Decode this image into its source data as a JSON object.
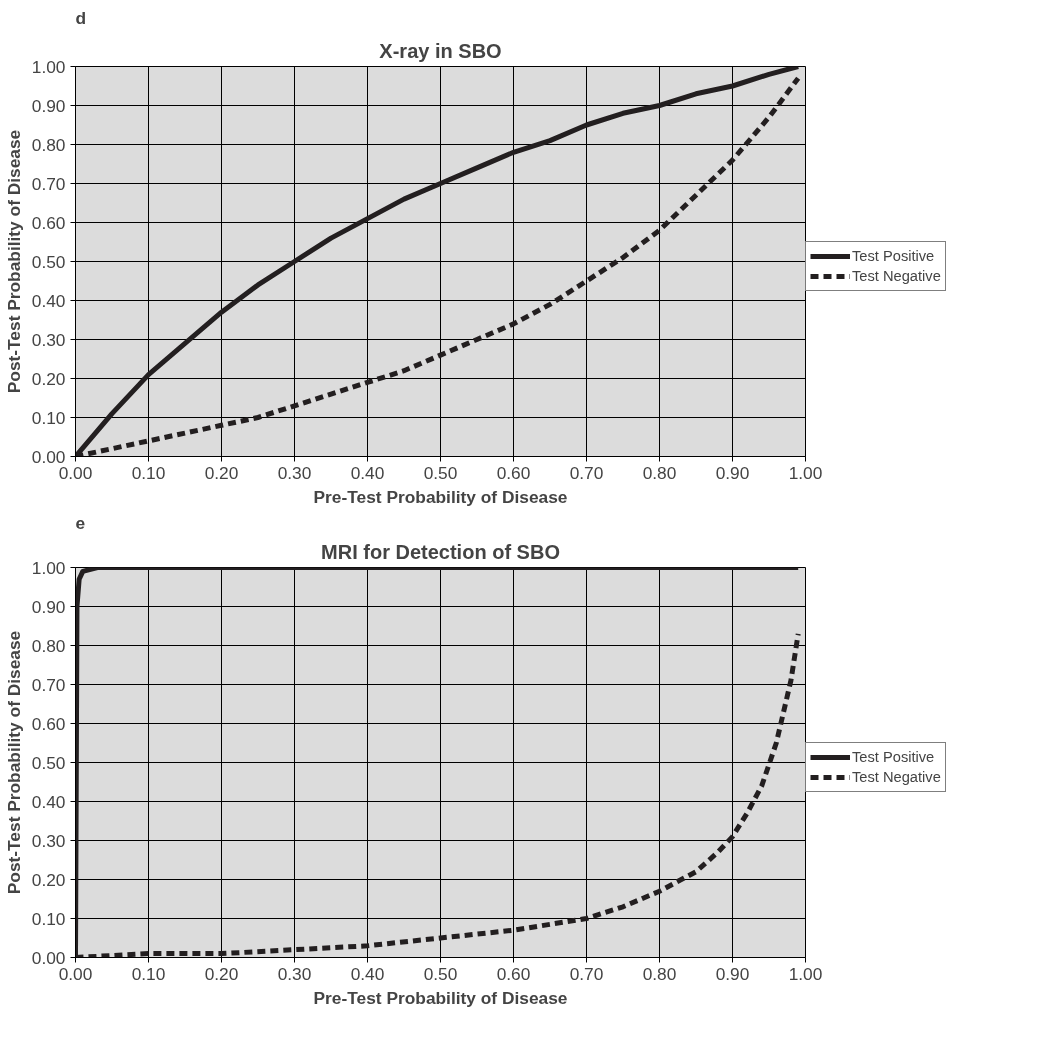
{
  "chart_data": [
    {
      "type": "line",
      "title": "X-ray in SBO",
      "xlabel": "Pre-Test Probability of Disease",
      "ylabel": "Post-Test Probability of Disease",
      "annotations": [
        "d"
      ],
      "x": [
        0,
        0.05,
        0.1,
        0.15,
        0.2,
        0.25,
        0.3,
        0.35,
        0.4,
        0.45,
        0.5,
        0.55,
        0.6,
        0.65,
        0.7,
        0.75,
        0.8,
        0.85,
        0.9,
        0.95,
        0.99
      ],
      "series": [
        {
          "name": "Test Positive",
          "color": "#231f20",
          "line_style": "solid",
          "values": [
            0,
            0.11,
            0.21,
            0.29,
            0.37,
            0.44,
            0.5,
            0.56,
            0.61,
            0.66,
            0.7,
            0.74,
            0.78,
            0.81,
            0.85,
            0.88,
            0.9,
            0.93,
            0.95,
            0.98,
            1.0
          ]
        },
        {
          "name": "Test Negative",
          "color": "#231f20",
          "line_style": "dashed",
          "values": [
            0,
            0.02,
            0.04,
            0.06,
            0.08,
            0.1,
            0.13,
            0.16,
            0.19,
            0.22,
            0.26,
            0.3,
            0.34,
            0.39,
            0.45,
            0.51,
            0.58,
            0.67,
            0.76,
            0.87,
            0.97
          ]
        }
      ],
      "xlim": [
        0,
        1
      ],
      "ylim": [
        0,
        1
      ],
      "xticks": [
        {
          "value": 0,
          "label": "0.00"
        },
        {
          "value": 0.1,
          "label": "0.10"
        },
        {
          "value": 0.2,
          "label": "0.20"
        },
        {
          "value": 0.3,
          "label": "0.30"
        },
        {
          "value": 0.4,
          "label": "0.40"
        },
        {
          "value": 0.5,
          "label": "0.50"
        },
        {
          "value": 0.6,
          "label": "0.60"
        },
        {
          "value": 0.7,
          "label": "0.70"
        },
        {
          "value": 0.8,
          "label": "0.80"
        },
        {
          "value": 0.9,
          "label": "0.90"
        },
        {
          "value": 1,
          "label": "1.00"
        }
      ],
      "yticks": [
        {
          "value": 0,
          "label": "0.00"
        },
        {
          "value": 0.1,
          "label": "0.10"
        },
        {
          "value": 0.2,
          "label": "0.20"
        },
        {
          "value": 0.3,
          "label": "0.30"
        },
        {
          "value": 0.4,
          "label": "0.40"
        },
        {
          "value": 0.5,
          "label": "0.50"
        },
        {
          "value": 0.6,
          "label": "0.60"
        },
        {
          "value": 0.7,
          "label": "0.70"
        },
        {
          "value": 0.8,
          "label": "0.80"
        },
        {
          "value": 0.9,
          "label": "0.90"
        },
        {
          "value": 1,
          "label": "1.00"
        }
      ],
      "grid": true,
      "legend": "right",
      "marker": "none"
    },
    {
      "type": "line",
      "title": "MRI for Detection of SBO",
      "xlabel": "Pre-Test Probability of Disease",
      "ylabel": "Post-Test Probability of Disease",
      "annotations": [
        "e"
      ],
      "series": [
        {
          "name": "Test Positive",
          "color": "#231f20",
          "line_style": "solid",
          "x": [
            0,
            0.002,
            0.005,
            0.01,
            0.03,
            0.1,
            0.3,
            0.5,
            0.7,
            0.9,
            0.99
          ],
          "values": [
            0,
            0.9,
            0.97,
            0.99,
            1.0,
            1.0,
            1.0,
            1.0,
            1.0,
            1.0,
            1.0
          ]
        },
        {
          "name": "Test Negative",
          "color": "#231f20",
          "line_style": "dashed",
          "x": [
            0,
            0.1,
            0.2,
            0.3,
            0.4,
            0.5,
            0.6,
            0.7,
            0.75,
            0.8,
            0.85,
            0.88,
            0.9,
            0.92,
            0.94,
            0.96,
            0.98,
            0.99
          ],
          "values": [
            0,
            0.01,
            0.01,
            0.02,
            0.03,
            0.05,
            0.07,
            0.1,
            0.13,
            0.17,
            0.22,
            0.27,
            0.31,
            0.37,
            0.44,
            0.55,
            0.71,
            0.83
          ]
        }
      ],
      "xlim": [
        0,
        1
      ],
      "ylim": [
        0,
        1
      ],
      "xticks": [
        {
          "value": 0,
          "label": "0.00"
        },
        {
          "value": 0.1,
          "label": "0.10"
        },
        {
          "value": 0.2,
          "label": "0.20"
        },
        {
          "value": 0.3,
          "label": "0.30"
        },
        {
          "value": 0.4,
          "label": "0.40"
        },
        {
          "value": 0.5,
          "label": "0.50"
        },
        {
          "value": 0.6,
          "label": "0.60"
        },
        {
          "value": 0.7,
          "label": "0.70"
        },
        {
          "value": 0.8,
          "label": "0.80"
        },
        {
          "value": 0.9,
          "label": "0.90"
        },
        {
          "value": 1,
          "label": "1.00"
        }
      ],
      "yticks": [
        {
          "value": 0,
          "label": "0.00"
        },
        {
          "value": 0.1,
          "label": "0.10"
        },
        {
          "value": 0.2,
          "label": "0.20"
        },
        {
          "value": 0.3,
          "label": "0.30"
        },
        {
          "value": 0.4,
          "label": "0.40"
        },
        {
          "value": 0.5,
          "label": "0.50"
        },
        {
          "value": 0.6,
          "label": "0.60"
        },
        {
          "value": 0.7,
          "label": "0.70"
        },
        {
          "value": 0.8,
          "label": "0.80"
        },
        {
          "value": 0.9,
          "label": "0.90"
        },
        {
          "value": 1,
          "label": "1.00"
        }
      ],
      "grid": true,
      "legend": "right",
      "marker": "none"
    }
  ]
}
